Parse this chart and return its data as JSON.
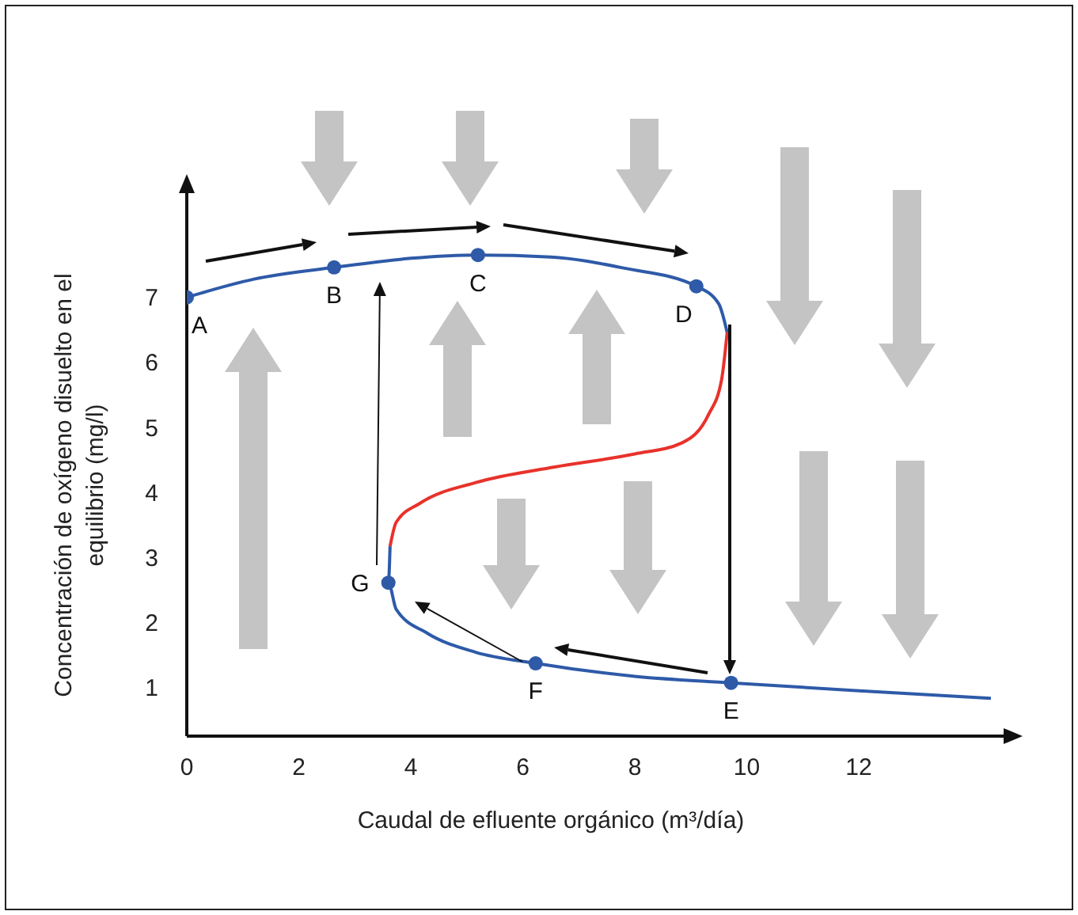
{
  "chart_data": {
    "type": "line",
    "xlabel": "Caudal de efluente orgánico (m³/día)",
    "ylabel": "Concentración de oxígeno disuelto en el equilibrio (mg/l)",
    "xlim": [
      0,
      14.7
    ],
    "xticks": [
      0,
      2,
      4,
      6,
      8,
      10,
      12
    ],
    "ylim": [
      0.25,
      8.7
    ],
    "yticks": [
      1,
      2,
      3,
      4,
      5,
      6,
      7
    ],
    "grid": false,
    "line_style": "solid",
    "series": [
      {
        "color": "#2e5aa8",
        "marker": "none",
        "x": [
          0,
          1.2,
          2.63,
          4,
          5.2,
          6.5,
          7.8,
          9.1,
          9.5,
          9.65
        ],
        "values": [
          7,
          7.28,
          7.46,
          7.6,
          7.65,
          7.62,
          7.45,
          7.17,
          6.9,
          6.46
        ]
      },
      {
        "color": "#e8322b",
        "marker": "none",
        "x": [
          9.65,
          9.55,
          9.32,
          8.84,
          8,
          6.57,
          5.16,
          4.16,
          3.74,
          3.63
        ],
        "values": [
          6.46,
          5.73,
          5.2,
          4.76,
          4.59,
          4.39,
          4.15,
          3.83,
          3.54,
          3.17
        ]
      },
      {
        "color": "#2e5aa8",
        "marker": "none",
        "x": [
          3.63,
          3.6,
          3.74,
          4.3,
          5.16,
          6.23,
          8,
          9.72,
          11.95,
          14.36
        ],
        "values": [
          3.17,
          2.61,
          2.2,
          1.83,
          1.54,
          1.37,
          1.17,
          1.07,
          0.95,
          0.83
        ]
      },
      {
        "type": "scatter",
        "color": "#2e5aa8",
        "marker": "circle",
        "x": [
          0,
          2.63,
          5.2,
          9.1,
          9.72,
          6.23,
          3.6
        ],
        "values": [
          7,
          7.46,
          7.65,
          7.17,
          1.07,
          1.37,
          2.61
        ]
      }
    ],
    "annotations": [
      {
        "text": "A",
        "x": 0,
        "y": 7
      },
      {
        "text": "B",
        "x": 2.63,
        "y": 7.46
      },
      {
        "text": "C",
        "x": 5.2,
        "y": 7.65
      },
      {
        "text": "D",
        "x": 9.1,
        "y": 7.17
      },
      {
        "text": "E",
        "x": 9.72,
        "y": 1.07
      },
      {
        "text": "F",
        "x": 6.23,
        "y": 1.37
      },
      {
        "text": "G",
        "x": 3.6,
        "y": 2.61
      }
    ]
  }
}
